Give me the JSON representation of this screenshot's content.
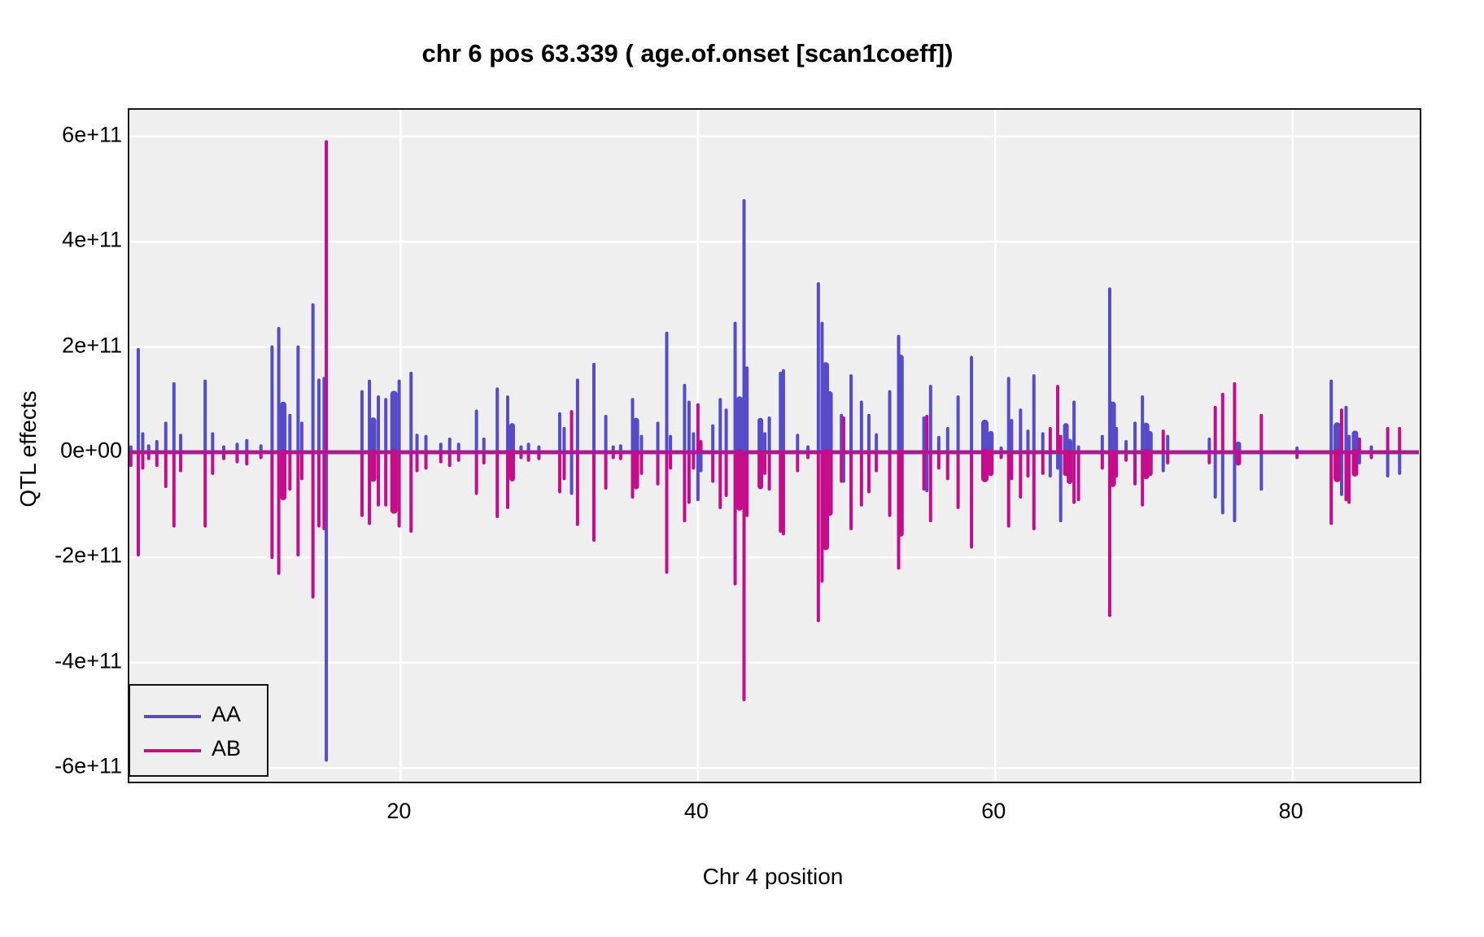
{
  "title": "chr 6 pos 63.339 ( age.of.onset  [scan1coeff])",
  "colors": {
    "aa": "#584bc9",
    "ab": "#c40d8a",
    "panel_bg": "#efefef",
    "gridline": "#ffffff",
    "panel_border": "#1a1a1a",
    "text": "#000000"
  },
  "axes": {
    "x": {
      "label": "Chr 4 position",
      "ticks": [
        20,
        40,
        60,
        80
      ],
      "range": [
        1.75,
        88.5
      ]
    },
    "y": {
      "label": "QTL effects",
      "ticks": [
        {
          "v": 6,
          "label": "6e+11"
        },
        {
          "v": 4,
          "label": "4e+11"
        },
        {
          "v": 2,
          "label": "2e+11"
        },
        {
          "v": 0,
          "label": "0e+00"
        },
        {
          "v": -2,
          "label": "-2e+11"
        },
        {
          "v": -4,
          "label": "-4e+11"
        },
        {
          "v": -6,
          "label": "-6e+11"
        }
      ],
      "range_units_1e11": [
        -6.32,
        6.51
      ]
    }
  },
  "legend": {
    "items": [
      {
        "label": "AA",
        "color": "#584bc9"
      },
      {
        "label": "AB",
        "color": "#c40d8a"
      }
    ]
  },
  "chart_data": {
    "type": "line",
    "subtype": "coefficient-spike-plot",
    "title": "chr 6 pos 63.339 ( age.of.onset  [scan1coeff])",
    "xlabel": "Chr 4 position",
    "ylabel": "QTL effects",
    "xlim": [
      1.75,
      88.5
    ],
    "ylim_units_1e11": [
      -6.32,
      6.51
    ],
    "grid": "white major gridlines on gray panel",
    "legend_position": "bottom-left inside panel",
    "value_unit": "1e11",
    "series_names": [
      "AA",
      "AB"
    ],
    "spike_format": "[x_position, AA_value, AB_value, optional_width_px]",
    "spikes": [
      [
        1.85,
        0.1,
        -0.25
      ],
      [
        2.35,
        1.95,
        -1.95
      ],
      [
        2.65,
        0.35,
        -0.3
      ],
      [
        3.05,
        0.12,
        -0.12
      ],
      [
        3.6,
        0.2,
        -0.25
      ],
      [
        4.2,
        0.55,
        -0.65
      ],
      [
        4.75,
        1.3,
        -1.4
      ],
      [
        5.2,
        0.32,
        -0.35
      ],
      [
        6.85,
        1.35,
        -1.4
      ],
      [
        7.35,
        0.35,
        -0.4
      ],
      [
        8.1,
        0.1,
        -0.12
      ],
      [
        9.0,
        0.15,
        -0.18
      ],
      [
        9.65,
        0.22,
        -0.22
      ],
      [
        10.6,
        0.12,
        -0.1
      ],
      [
        11.35,
        2.0,
        -2.0
      ],
      [
        11.8,
        2.35,
        -2.3
      ],
      [
        12.1,
        0.9,
        -0.85,
        8
      ],
      [
        12.55,
        0.7,
        -0.7
      ],
      [
        13.1,
        2.0,
        -1.95
      ],
      [
        13.35,
        0.55,
        -0.5
      ],
      [
        14.1,
        2.8,
        -2.75
      ],
      [
        14.5,
        1.37,
        -1.4
      ],
      [
        14.85,
        1.4,
        -1.45
      ],
      [
        15.0,
        -5.85,
        5.9
      ],
      [
        17.4,
        1.15,
        -1.2
      ],
      [
        17.9,
        1.35,
        -1.35
      ],
      [
        18.15,
        0.6,
        -0.5,
        8
      ],
      [
        18.5,
        1.05,
        -1.0
      ],
      [
        19.0,
        1.0,
        -1.0
      ],
      [
        19.55,
        1.1,
        -1.1,
        9
      ],
      [
        19.9,
        1.35,
        -1.4
      ],
      [
        20.7,
        1.5,
        -1.5
      ],
      [
        21.1,
        0.32,
        -0.35
      ],
      [
        21.7,
        0.3,
        -0.3
      ],
      [
        22.7,
        0.15,
        -0.18
      ],
      [
        23.3,
        0.25,
        -0.25
      ],
      [
        23.9,
        0.15,
        -0.15
      ],
      [
        25.1,
        0.78,
        -0.78
      ],
      [
        25.6,
        0.25,
        -0.2
      ],
      [
        26.5,
        1.2,
        -1.22
      ],
      [
        27.2,
        1.05,
        -1.05
      ],
      [
        27.5,
        0.5,
        -0.5,
        7
      ],
      [
        28.1,
        0.1,
        -0.1
      ],
      [
        28.6,
        0.15,
        -0.15
      ],
      [
        29.3,
        0.1,
        -0.12
      ],
      [
        30.7,
        0.73,
        -0.75
      ],
      [
        31.0,
        0.45,
        -0.5
      ],
      [
        31.5,
        -0.78,
        0.77
      ],
      [
        31.9,
        1.37,
        -1.37
      ],
      [
        33.0,
        1.67,
        -1.67
      ],
      [
        33.8,
        0.68,
        -0.68
      ],
      [
        34.3,
        0.1,
        -0.1
      ],
      [
        34.8,
        0.12,
        -0.12
      ],
      [
        35.6,
        1.0,
        -0.85
      ],
      [
        35.85,
        0.6,
        -0.65,
        7
      ],
      [
        36.2,
        0.3,
        -0.4
      ],
      [
        37.3,
        0.55,
        -0.6
      ],
      [
        37.9,
        2.26,
        -2.28
      ],
      [
        38.15,
        0.3,
        -0.3
      ],
      [
        39.1,
        1.27,
        -1.3
      ],
      [
        39.4,
        0.95,
        -0.95
      ],
      [
        39.7,
        0.35,
        -0.3
      ],
      [
        40.0,
        -0.9,
        0.9
      ],
      [
        40.2,
        -0.35,
        0.2
      ],
      [
        41.0,
        0.5,
        -0.55
      ],
      [
        41.5,
        1.0,
        -1.05
      ],
      [
        41.9,
        0.8,
        -0.82
      ],
      [
        42.5,
        2.45,
        -2.5
      ],
      [
        42.8,
        1.0,
        -1.05,
        8
      ],
      [
        43.1,
        4.78,
        -4.7
      ],
      [
        43.3,
        1.6,
        -1.2
      ],
      [
        44.2,
        0.6,
        -0.65,
        7
      ],
      [
        44.5,
        0.35,
        -0.4
      ],
      [
        44.8,
        0.65,
        -0.7
      ],
      [
        45.55,
        1.5,
        -1.5
      ],
      [
        45.75,
        1.55,
        -1.55
      ],
      [
        46.7,
        0.32,
        -0.35
      ],
      [
        47.4,
        0.1,
        -0.1
      ],
      [
        48.1,
        3.2,
        -3.2
      ],
      [
        48.35,
        2.45,
        -2.45
      ],
      [
        48.6,
        1.65,
        -1.8,
        8
      ],
      [
        48.85,
        1.1,
        -1.15,
        8
      ],
      [
        49.65,
        0.7,
        -0.55
      ],
      [
        49.8,
        -0.55,
        0.65
      ],
      [
        50.3,
        1.45,
        -1.45
      ],
      [
        51.0,
        0.95,
        -1.0
      ],
      [
        51.5,
        0.7,
        -0.75
      ],
      [
        52.0,
        0.33,
        -0.35
      ],
      [
        52.9,
        1.15,
        -1.2
      ],
      [
        53.5,
        2.2,
        -2.2
      ],
      [
        53.65,
        1.8,
        -1.55,
        7
      ],
      [
        55.2,
        0.65,
        -0.7
      ],
      [
        55.4,
        -0.73,
        0.68
      ],
      [
        55.65,
        1.25,
        -1.3
      ],
      [
        56.2,
        0.28,
        -0.3
      ],
      [
        56.8,
        0.45,
        -0.5
      ],
      [
        57.5,
        1.05,
        -1.05
      ],
      [
        58.4,
        1.8,
        -1.8
      ],
      [
        59.3,
        0.55,
        -0.5,
        9
      ],
      [
        59.7,
        0.35,
        -0.4,
        7
      ],
      [
        60.4,
        0.08,
        -0.1
      ],
      [
        60.9,
        1.4,
        -1.4
      ],
      [
        61.1,
        0.6,
        -0.5
      ],
      [
        61.7,
        0.8,
        -0.85
      ],
      [
        62.2,
        0.4,
        -0.45
      ],
      [
        62.6,
        1.45,
        -1.45
      ],
      [
        63.2,
        0.35,
        -0.4
      ],
      [
        63.7,
        -0.45,
        0.45
      ],
      [
        64.2,
        -0.3,
        1.25
      ],
      [
        64.4,
        -1.3,
        0.3
      ],
      [
        64.75,
        0.5,
        -0.4,
        7
      ],
      [
        65.0,
        0.2,
        -0.55,
        7
      ],
      [
        65.3,
        0.95,
        -0.95
      ],
      [
        65.6,
        0.1,
        -0.9
      ],
      [
        67.2,
        0.3,
        -0.3
      ],
      [
        67.7,
        3.1,
        -3.1
      ],
      [
        67.9,
        0.9,
        -0.6,
        8
      ],
      [
        68.15,
        0.45,
        -0.45
      ],
      [
        68.8,
        0.2,
        -0.15
      ],
      [
        69.4,
        0.55,
        -0.6
      ],
      [
        69.9,
        1.05,
        -1.0
      ],
      [
        70.15,
        0.5,
        -0.45,
        8
      ],
      [
        70.4,
        0.35,
        -0.4,
        7
      ],
      [
        71.3,
        -0.35,
        0.4
      ],
      [
        71.6,
        0.3,
        -0.2
      ],
      [
        74.4,
        0.25,
        -0.2
      ],
      [
        74.8,
        -0.85,
        0.85
      ],
      [
        75.3,
        -1.15,
        1.1
      ],
      [
        76.1,
        -1.3,
        1.3
      ],
      [
        76.35,
        0.15,
        -0.2,
        7
      ],
      [
        77.9,
        -0.7,
        0.7
      ],
      [
        80.3,
        0.08,
        -0.1
      ],
      [
        82.6,
        1.35,
        -1.35
      ],
      [
        83.0,
        0.5,
        -0.5,
        9
      ],
      [
        83.3,
        -0.8,
        0.8
      ],
      [
        83.6,
        0.85,
        -0.9
      ],
      [
        83.8,
        0.3,
        -0.95
      ],
      [
        84.2,
        0.35,
        -0.4,
        8
      ],
      [
        84.5,
        -0.2,
        0.25
      ],
      [
        85.3,
        0.1,
        -0.1
      ],
      [
        86.4,
        -0.45,
        0.45
      ],
      [
        87.2,
        -0.4,
        0.45
      ]
    ]
  }
}
